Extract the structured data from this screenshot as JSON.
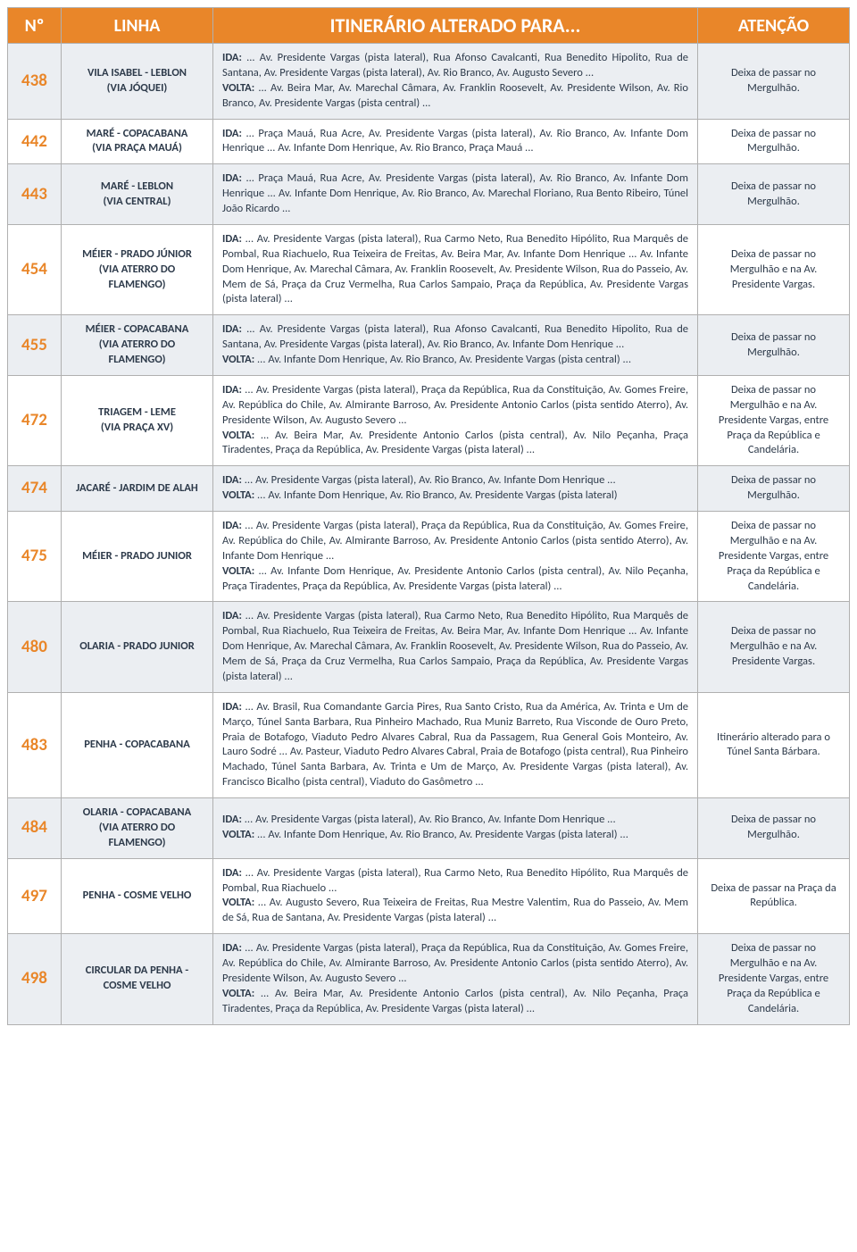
{
  "headers": {
    "num": "Nº",
    "linha": "LINHA",
    "itinerario": "ITINERÁRIO ALTERADO PARA...",
    "atencao": "ATENÇÃO"
  },
  "colors": {
    "header_bg": "#e98629",
    "header_text": "#ffffff",
    "num_text": "#e98629",
    "body_text": "#2d3a4a",
    "alt_row_bg": "#ebeef2",
    "border": "#b0b0b0"
  },
  "rows": [
    {
      "num": "438",
      "linha": "VILA ISABEL - LEBLON (VIA JÓQUEI)",
      "ida_label": "IDA:",
      "ida": " ... Av. Presidente Vargas (pista lateral), Rua Afonso Cavalcanti, Rua Benedito Hipolito, Rua de Santana, Av. Presidente Vargas (pista lateral), Av. Rio Branco, Av. Augusto Severo ...",
      "volta_label": "VOLTA:",
      "volta": " ... Av. Beira Mar, Av. Marechal Câmara, Av. Franklin Roosevelt, Av. Presidente Wilson, Av. Rio Branco, Av. Presidente Vargas (pista central) ...",
      "atencao": "Deixa de passar no Mergulhão."
    },
    {
      "num": "442",
      "linha": "MARÉ - COPACABANA (VIA PRAÇA MAUÁ)",
      "ida_label": "IDA:",
      "ida": " ... Praça Mauá, Rua Acre, Av. Presidente Vargas (pista lateral), Av. Rio Branco, Av. Infante Dom Henrique ... Av. Infante Dom Henrique, Av. Rio Branco, Praça Mauá ...",
      "atencao": "Deixa de passar no Mergulhão."
    },
    {
      "num": "443",
      "linha": "MARÉ - LEBLON (VIA CENTRAL)",
      "ida_label": "IDA:",
      "ida": " ... Praça Mauá, Rua Acre, Av. Presidente Vargas (pista lateral), Av. Rio Branco, Av. Infante Dom Henrique ... Av. Infante Dom Henrique, Av. Rio Branco, Av. Marechal Floriano, Rua Bento Ribeiro, Túnel João Ricardo ...",
      "atencao": "Deixa de passar no Mergulhão."
    },
    {
      "num": "454",
      "linha": "MÉIER - PRADO JÚNIOR (VIA ATERRO DO FLAMENGO)",
      "ida_label": "IDA:",
      "ida": " ... Av. Presidente Vargas (pista lateral), Rua Carmo Neto, Rua Benedito Hipólito, Rua Marquês de Pombal, Rua Riachuelo, Rua Teixeira de Freitas, Av. Beira Mar, Av. Infante Dom Henrique ... Av. Infante Dom Henrique, Av. Marechal Câmara, Av. Franklin Roosevelt, Av. Presidente Wilson, Rua do Passeio, Av. Mem de Sá, Praça da Cruz Vermelha, Rua Carlos Sampaio, Praça da República, Av. Presidente Vargas (pista lateral) ...",
      "atencao": "Deixa de passar no Mergulhão e na Av. Presidente Vargas."
    },
    {
      "num": "455",
      "linha": "MÉIER - COPACABANA (VIA ATERRO DO FLAMENGO)",
      "ida_label": "IDA:",
      "ida": " ... Av. Presidente Vargas (pista lateral), Rua Afonso Cavalcanti, Rua Benedito Hipolito, Rua de Santana, Av. Presidente Vargas (pista lateral), Av. Rio Branco, Av. Infante Dom Henrique ...",
      "volta_label": "VOLTA:",
      "volta": " ... Av. Infante Dom Henrique, Av. Rio Branco, Av. Presidente Vargas (pista central) ...",
      "atencao": "Deixa de passar no Mergulhão."
    },
    {
      "num": "472",
      "linha": "TRIAGEM - LEME (VIA PRAÇA XV)",
      "ida_label": "IDA:",
      "ida": " ... Av. Presidente Vargas (pista lateral), Praça da República, Rua da Constituição, Av. Gomes Freire, Av. República do Chile, Av. Almirante Barroso, Av. Presidente Antonio Carlos (pista sentido Aterro), Av. Presidente Wilson, Av. Augusto Severo ...",
      "volta_label": "VOLTA:",
      "volta": " ... Av. Beira Mar, Av. Presidente Antonio Carlos (pista central), Av. Nilo Peçanha, Praça Tiradentes, Praça da República, Av. Presidente Vargas (pista lateral) ...",
      "atencao": "Deixa de passar no Mergulhão e na Av. Presidente Vargas, entre Praça da República e Candelária."
    },
    {
      "num": "474",
      "linha": "JACARÉ - JARDIM DE ALAH",
      "ida_label": "IDA:",
      "ida": " ... Av. Presidente Vargas (pista lateral), Av. Rio Branco, Av. Infante Dom Henrique ...",
      "volta_label": "VOLTA:",
      "volta": " ... Av. Infante Dom Henrique, Av. Rio Branco, Av. Presidente Vargas (pista lateral)",
      "atencao": "Deixa de passar no Mergulhão."
    },
    {
      "num": "475",
      "linha": "MÉIER - PRADO JUNIOR",
      "ida_label": "IDA:",
      "ida": " ... Av. Presidente Vargas (pista lateral), Praça da República, Rua da Constituição, Av. Gomes Freire, Av. República do Chile, Av. Almirante Barroso, Av. Presidente Antonio Carlos (pista sentido Aterro), Av. Infante Dom Henrique ...",
      "volta_label": "VOLTA:",
      "volta": " ... Av. Infante Dom Henrique, Av. Presidente Antonio Carlos (pista central), Av. Nilo Peçanha, Praça Tiradentes, Praça da República, Av. Presidente Vargas (pista lateral) ...",
      "atencao": "Deixa de passar no Mergulhão e na Av. Presidente Vargas, entre Praça da República e Candelária."
    },
    {
      "num": "480",
      "linha": "OLARIA - PRADO JUNIOR",
      "ida_label": "IDA:",
      "ida": " ... Av. Presidente Vargas (pista lateral), Rua Carmo Neto, Rua Benedito Hipólito, Rua Marquês de Pombal, Rua Riachuelo, Rua Teixeira de Freitas, Av. Beira Mar, Av. Infante Dom Henrique ... Av. Infante Dom Henrique, Av. Marechal Câmara, Av. Franklin Roosevelt, Av. Presidente Wilson, Rua do Passeio, Av. Mem de Sá, Praça da Cruz Vermelha, Rua Carlos Sampaio, Praça da República, Av. Presidente Vargas (pista lateral) ...",
      "atencao": "Deixa de passar no Mergulhão e na Av. Presidente Vargas."
    },
    {
      "num": "483",
      "linha": "PENHA - COPACABANA",
      "ida_label": "IDA:",
      "ida": " ... Av. Brasil, Rua Comandante Garcia Pires, Rua Santo Cristo, Rua da América, Av. Trinta e Um de Março, Túnel Santa Barbara, Rua Pinheiro Machado, Rua Muniz Barreto, Rua Visconde de Ouro Preto, Praia de Botafogo, Viaduto Pedro Alvares Cabral, Rua da Passagem, Rua General Gois Monteiro, Av. Lauro Sodré ... Av. Pasteur, Viaduto Pedro Alvares Cabral, Praia de Botafogo (pista central), Rua Pinheiro Machado, Túnel Santa Barbara, Av. Trinta e Um de Março, Av. Presidente Vargas (pista lateral), Av. Francisco Bicalho (pista central), Viaduto do Gasômetro ...",
      "atencao": "Itinerário alterado para o Túnel Santa Bárbara."
    },
    {
      "num": "484",
      "linha": "OLARIA - COPACABANA (VIA ATERRO DO FLAMENGO)",
      "ida_label": "IDA:",
      "ida": " ... Av. Presidente Vargas (pista lateral), Av. Rio Branco, Av. Infante Dom Henrique ...",
      "volta_label": "VOLTA:",
      "volta": " ... Av. Infante Dom Henrique, Av. Rio Branco, Av. Presidente Vargas (pista lateral) ...",
      "atencao": "Deixa de passar no Mergulhão."
    },
    {
      "num": "497",
      "linha": "PENHA - COSME VELHO",
      "ida_label": "IDA:",
      "ida": " ... Av. Presidente Vargas (pista lateral), Rua Carmo Neto, Rua Benedito Hipólito, Rua Marquês de Pombal, Rua Riachuelo ...",
      "volta_label": "VOLTA:",
      "volta": " ... Av. Augusto Severo, Rua Teixeira de Freitas, Rua Mestre Valentim, Rua do Passeio, Av. Mem de Sá, Rua de Santana, Av. Presidente Vargas (pista lateral) ...",
      "atencao": "Deixa de passar na Praça da República."
    },
    {
      "num": "498",
      "linha": "CIRCULAR DA PENHA - COSME VELHO",
      "ida_label": "IDA:",
      "ida": " ... Av. Presidente Vargas (pista lateral), Praça da República, Rua da Constituição, Av. Gomes Freire, Av. República do Chile, Av. Almirante Barroso, Av. Presidente Antonio Carlos (pista sentido Aterro), Av. Presidente Wilson, Av. Augusto Severo ...",
      "volta_label": "VOLTA:",
      "volta": " ... Av. Beira Mar, Av. Presidente Antonio Carlos (pista central), Av. Nilo Peçanha, Praça Tiradentes, Praça da República, Av. Presidente Vargas (pista lateral) ...",
      "atencao": "Deixa de passar no Mergulhão e na Av. Presidente Vargas, entre Praça da República e Candelária."
    }
  ]
}
